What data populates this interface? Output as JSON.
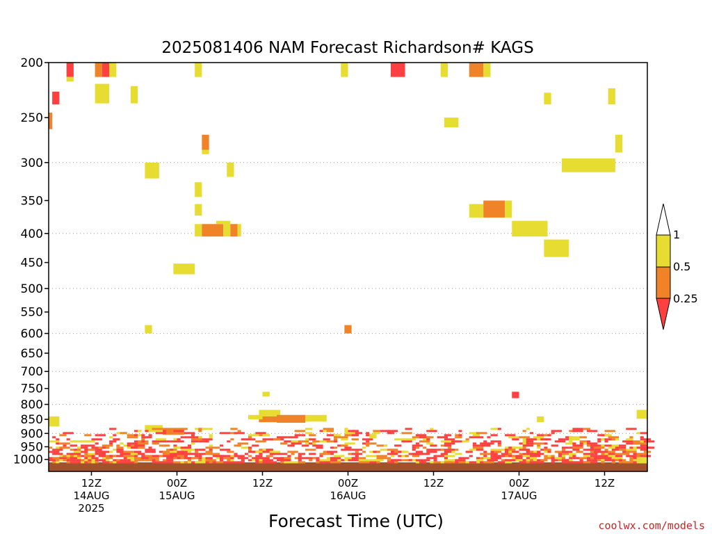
{
  "chart_data": {
    "type": "heatmap",
    "title": "2025081406 NAM Forecast Richardson# KAGS",
    "xlabel": "Forecast Time (UTC)",
    "ylabel": "",
    "credit": "coolwx.com/models",
    "y_axis": {
      "unit": "hPa",
      "scale": "log-pressure",
      "range": [
        200,
        1050
      ],
      "ticks": [
        200,
        250,
        300,
        350,
        400,
        450,
        500,
        550,
        600,
        650,
        700,
        750,
        800,
        850,
        900,
        950,
        1000
      ],
      "gridlines": [
        300,
        400,
        500,
        600,
        700,
        800,
        900
      ]
    },
    "x_axis": {
      "unit": "forecast hour",
      "range": [
        0,
        84
      ],
      "ticks": [
        {
          "t": 6,
          "label": "12Z",
          "date": "14AUG",
          "year": "2025"
        },
        {
          "t": 18,
          "label": "00Z",
          "date": "15AUG",
          "year": ""
        },
        {
          "t": 30,
          "label": "12Z",
          "date": "",
          "year": ""
        },
        {
          "t": 42,
          "label": "00Z",
          "date": "16AUG",
          "year": ""
        },
        {
          "t": 54,
          "label": "12Z",
          "date": "",
          "year": ""
        },
        {
          "t": 66,
          "label": "00Z",
          "date": "17AUG",
          "year": ""
        },
        {
          "t": 78,
          "label": "12Z",
          "date": "",
          "year": ""
        }
      ]
    },
    "colorbar": {
      "levels": [
        "1",
        "0.5",
        "0.25"
      ],
      "colors": {
        "lt_1": "#e6dc32",
        "lt_0_5": "#f08228",
        "lt_0_25": "#ff4040",
        "ground": "#a0522d"
      }
    },
    "cells": [
      {
        "t0": 0,
        "t1": 0.5,
        "p0": 245,
        "p1": 262,
        "c": "orange"
      },
      {
        "t0": 0.5,
        "t1": 1.5,
        "p0": 225,
        "p1": 237,
        "c": "red"
      },
      {
        "t0": 2.5,
        "t1": 3.5,
        "p0": 200,
        "p1": 212,
        "c": "red"
      },
      {
        "t0": 2.5,
        "t1": 3.5,
        "p0": 212,
        "p1": 216,
        "c": "yellow"
      },
      {
        "t0": 6.5,
        "t1": 7.5,
        "p0": 200,
        "p1": 212,
        "c": "orange"
      },
      {
        "t0": 7.5,
        "t1": 8.5,
        "p0": 200,
        "p1": 212,
        "c": "red"
      },
      {
        "t0": 8.5,
        "t1": 9.5,
        "p0": 200,
        "p1": 212,
        "c": "yellow"
      },
      {
        "t0": 6.5,
        "t1": 8.5,
        "p0": 218,
        "p1": 236,
        "c": "yellow"
      },
      {
        "t0": 11.5,
        "t1": 12.5,
        "p0": 220,
        "p1": 236,
        "c": "yellow"
      },
      {
        "t0": 13.5,
        "t1": 15.5,
        "p0": 300,
        "p1": 320,
        "c": "yellow"
      },
      {
        "t0": 17.5,
        "t1": 20.5,
        "p0": 452,
        "p1": 472,
        "c": "yellow"
      },
      {
        "t0": 13.5,
        "t1": 14.5,
        "p0": 580,
        "p1": 600,
        "c": "yellow"
      },
      {
        "t0": 20.5,
        "t1": 21.5,
        "p0": 200,
        "p1": 212,
        "c": "yellow"
      },
      {
        "t0": 21.5,
        "t1": 22.5,
        "p0": 268,
        "p1": 285,
        "c": "orange"
      },
      {
        "t0": 21.5,
        "t1": 22.5,
        "p0": 285,
        "p1": 290,
        "c": "yellow"
      },
      {
        "t0": 25,
        "t1": 26,
        "p0": 300,
        "p1": 318,
        "c": "yellow"
      },
      {
        "t0": 20.5,
        "t1": 21.5,
        "p0": 325,
        "p1": 345,
        "c": "yellow"
      },
      {
        "t0": 20.5,
        "t1": 21.5,
        "p0": 355,
        "p1": 372,
        "c": "yellow"
      },
      {
        "t0": 20.5,
        "t1": 21.5,
        "p0": 385,
        "p1": 405,
        "c": "yellow"
      },
      {
        "t0": 21.5,
        "t1": 24.5,
        "p0": 385,
        "p1": 405,
        "c": "orange"
      },
      {
        "t0": 24.5,
        "t1": 25.5,
        "p0": 380,
        "p1": 405,
        "c": "yellow"
      },
      {
        "t0": 23.5,
        "t1": 24.5,
        "p0": 380,
        "p1": 385,
        "c": "yellow"
      },
      {
        "t0": 25.5,
        "t1": 26.5,
        "p0": 385,
        "p1": 405,
        "c": "orange"
      },
      {
        "t0": 26.5,
        "t1": 27,
        "p0": 385,
        "p1": 405,
        "c": "yellow"
      },
      {
        "t0": 41,
        "t1": 42,
        "p0": 200,
        "p1": 212,
        "c": "yellow"
      },
      {
        "t0": 48,
        "t1": 50,
        "p0": 200,
        "p1": 212,
        "c": "red"
      },
      {
        "t0": 41.5,
        "t1": 42.5,
        "p0": 580,
        "p1": 600,
        "c": "orange"
      },
      {
        "t0": 55,
        "t1": 56,
        "p0": 200,
        "p1": 212,
        "c": "yellow"
      },
      {
        "t0": 59,
        "t1": 61,
        "p0": 200,
        "p1": 212,
        "c": "orange"
      },
      {
        "t0": 61,
        "t1": 62,
        "p0": 200,
        "p1": 212,
        "c": "yellow"
      },
      {
        "t0": 55.5,
        "t1": 57.5,
        "p0": 250,
        "p1": 260,
        "c": "yellow"
      },
      {
        "t0": 69.5,
        "t1": 70.5,
        "p0": 226,
        "p1": 237,
        "c": "yellow"
      },
      {
        "t0": 78.5,
        "t1": 79.5,
        "p0": 222,
        "p1": 237,
        "c": "yellow"
      },
      {
        "t0": 79.5,
        "t1": 80.5,
        "p0": 268,
        "p1": 288,
        "c": "yellow"
      },
      {
        "t0": 72,
        "t1": 79.5,
        "p0": 295,
        "p1": 312,
        "c": "yellow"
      },
      {
        "t0": 59,
        "t1": 61,
        "p0": 355,
        "p1": 375,
        "c": "yellow"
      },
      {
        "t0": 61,
        "t1": 64,
        "p0": 350,
        "p1": 375,
        "c": "orange"
      },
      {
        "t0": 64,
        "t1": 65,
        "p0": 350,
        "p1": 375,
        "c": "yellow"
      },
      {
        "t0": 65,
        "t1": 70,
        "p0": 380,
        "p1": 405,
        "c": "yellow"
      },
      {
        "t0": 69.5,
        "t1": 73,
        "p0": 410,
        "p1": 440,
        "c": "yellow"
      },
      {
        "t0": 65,
        "t1": 66,
        "p0": 760,
        "p1": 780,
        "c": "red"
      },
      {
        "t0": 30,
        "t1": 31,
        "p0": 760,
        "p1": 775,
        "c": "yellow"
      },
      {
        "t0": 29.5,
        "t1": 32.5,
        "p0": 818,
        "p1": 840,
        "c": "yellow"
      },
      {
        "t0": 29.5,
        "t1": 32,
        "p0": 840,
        "p1": 860,
        "c": "orange"
      },
      {
        "t0": 32,
        "t1": 36,
        "p0": 835,
        "p1": 862,
        "c": "orange"
      },
      {
        "t0": 36,
        "t1": 39,
        "p0": 835,
        "p1": 858,
        "c": "yellow"
      },
      {
        "t0": 28,
        "t1": 30,
        "p0": 835,
        "p1": 850,
        "c": "yellow"
      },
      {
        "t0": 0,
        "t1": 1.5,
        "p0": 840,
        "p1": 875,
        "c": "yellow"
      },
      {
        "t0": 82.5,
        "t1": 84,
        "p0": 818,
        "p1": 848,
        "c": "yellow"
      },
      {
        "t0": 68.5,
        "t1": 69.5,
        "p0": 840,
        "p1": 860,
        "c": "yellow"
      },
      {
        "t0": 13.5,
        "t1": 16,
        "p0": 870,
        "p1": 895,
        "c": "yellow"
      },
      {
        "t0": 16,
        "t1": 19,
        "p0": 880,
        "p1": 905,
        "c": "orange"
      },
      {
        "t0": 0,
        "t1": 84,
        "p0": 1012,
        "p1": 1050,
        "c": "ground"
      }
    ],
    "noise_band": {
      "p_top": 880,
      "p_bottom": 1012,
      "t_range": [
        0,
        84
      ]
    }
  }
}
